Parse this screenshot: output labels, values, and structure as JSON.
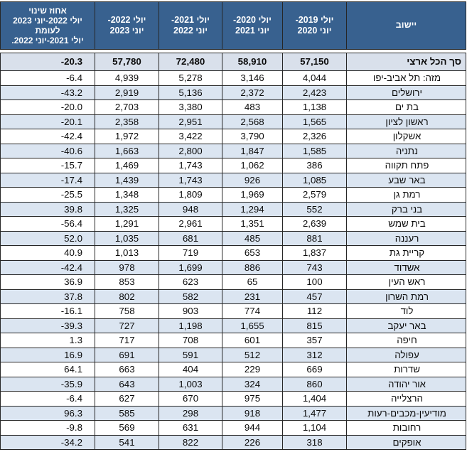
{
  "colors": {
    "header_bg": "#38618F",
    "header_fg": "#FFFFFF",
    "stripe_bg": "#DBE5F1",
    "total_bg": "#D9E0EB",
    "border": "#262626"
  },
  "table": {
    "columns": [
      {
        "key": "city",
        "label": "יישוב"
      },
      {
        "key": "y1920",
        "label": "יולי 2019-\nיוני 2020"
      },
      {
        "key": "y2021",
        "label": "יולי 2020-\nיוני 2021"
      },
      {
        "key": "y2122",
        "label": "יולי 2021-\nיוני 2022"
      },
      {
        "key": "y2223",
        "label": "יולי 2022-\nיוני 2023"
      },
      {
        "key": "pct",
        "label": "אחוז שינוי\nיולי 2022-יוני 2023\nלעומת\nיולי 2021-יוני 2022."
      }
    ],
    "total_row": {
      "city": "סך הכל ארצי",
      "y1920": "57,150",
      "y2021": "58,910",
      "y2122": "72,480",
      "y2223": "57,780",
      "pct": "-20.3"
    },
    "rows": [
      {
        "city": "מזה: תל אביב-יפו",
        "y1920": "4,044",
        "y2021": "3,146",
        "y2122": "5,278",
        "y2223": "4,939",
        "pct": "-6.4"
      },
      {
        "city": "ירושלים",
        "y1920": "2,423",
        "y2021": "2,372",
        "y2122": "5,136",
        "y2223": "2,919",
        "pct": "-43.2"
      },
      {
        "city": "בת ים",
        "y1920": "1,138",
        "y2021": "483",
        "y2122": "3,380",
        "y2223": "2,703",
        "pct": "-20.0"
      },
      {
        "city": "ראשון לציון",
        "y1920": "1,565",
        "y2021": "2,568",
        "y2122": "2,951",
        "y2223": "2,358",
        "pct": "-20.1"
      },
      {
        "city": "אשקלון",
        "y1920": "2,326",
        "y2021": "3,790",
        "y2122": "3,422",
        "y2223": "1,972",
        "pct": "-42.4"
      },
      {
        "city": "נתניה",
        "y1920": "1,585",
        "y2021": "1,847",
        "y2122": "2,800",
        "y2223": "1,663",
        "pct": "-40.6"
      },
      {
        "city": "פתח תקווה",
        "y1920": "386",
        "y2021": "1,062",
        "y2122": "1,743",
        "y2223": "1,469",
        "pct": "-15.7"
      },
      {
        "city": "באר שבע",
        "y1920": "1,085",
        "y2021": "926",
        "y2122": "1,743",
        "y2223": "1,439",
        "pct": "-17.4"
      },
      {
        "city": "רמת גן",
        "y1920": "2,579",
        "y2021": "1,969",
        "y2122": "1,809",
        "y2223": "1,348",
        "pct": "-25.5"
      },
      {
        "city": "בני ברק",
        "y1920": "552",
        "y2021": "1,294",
        "y2122": "948",
        "y2223": "1,325",
        "pct": "39.8"
      },
      {
        "city": "בית שמש",
        "y1920": "2,639",
        "y2021": "1,351",
        "y2122": "2,961",
        "y2223": "1,291",
        "pct": "-56.4"
      },
      {
        "city": "רעננה",
        "y1920": "881",
        "y2021": "485",
        "y2122": "681",
        "y2223": "1,035",
        "pct": "52.0"
      },
      {
        "city": "קריית גת",
        "y1920": "1,837",
        "y2021": "653",
        "y2122": "719",
        "y2223": "1,013",
        "pct": "40.9"
      },
      {
        "city": "אשדוד",
        "y1920": "743",
        "y2021": "886",
        "y2122": "1,699",
        "y2223": "978",
        "pct": "-42.4"
      },
      {
        "city": "ראש העין",
        "y1920": "100",
        "y2021": "65",
        "y2122": "623",
        "y2223": "853",
        "pct": "36.9"
      },
      {
        "city": "רמת השרון",
        "y1920": "457",
        "y2021": "231",
        "y2122": "582",
        "y2223": "802",
        "pct": "37.8"
      },
      {
        "city": "לוד",
        "y1920": "112",
        "y2021": "774",
        "y2122": "903",
        "y2223": "758",
        "pct": "-16.1"
      },
      {
        "city": "באר יעקב",
        "y1920": "815",
        "y2021": "1,655",
        "y2122": "1,198",
        "y2223": "727",
        "pct": "-39.3"
      },
      {
        "city": "חיפה",
        "y1920": "357",
        "y2021": "601",
        "y2122": "708",
        "y2223": "717",
        "pct": "1.3"
      },
      {
        "city": "עפולה",
        "y1920": "312",
        "y2021": "512",
        "y2122": "591",
        "y2223": "691",
        "pct": "16.9"
      },
      {
        "city": "שדרות",
        "y1920": "669",
        "y2021": "229",
        "y2122": "404",
        "y2223": "663",
        "pct": "64.1"
      },
      {
        "city": "אור יהודה",
        "y1920": "860",
        "y2021": "324",
        "y2122": "1,003",
        "y2223": "643",
        "pct": "-35.9"
      },
      {
        "city": "הרצלייה",
        "y1920": "1,404",
        "y2021": "975",
        "y2122": "670",
        "y2223": "627",
        "pct": "-6.4"
      },
      {
        "city": "מודיעין-מכבים-רעות",
        "y1920": "1,477",
        "y2021": "918",
        "y2122": "298",
        "y2223": "585",
        "pct": "96.3"
      },
      {
        "city": "רחובות",
        "y1920": "1,104",
        "y2021": "944",
        "y2122": "631",
        "y2223": "569",
        "pct": "-9.8"
      },
      {
        "city": "אופקים",
        "y1920": "318",
        "y2021": "226",
        "y2122": "822",
        "y2223": "541",
        "pct": "-34.2"
      }
    ]
  }
}
